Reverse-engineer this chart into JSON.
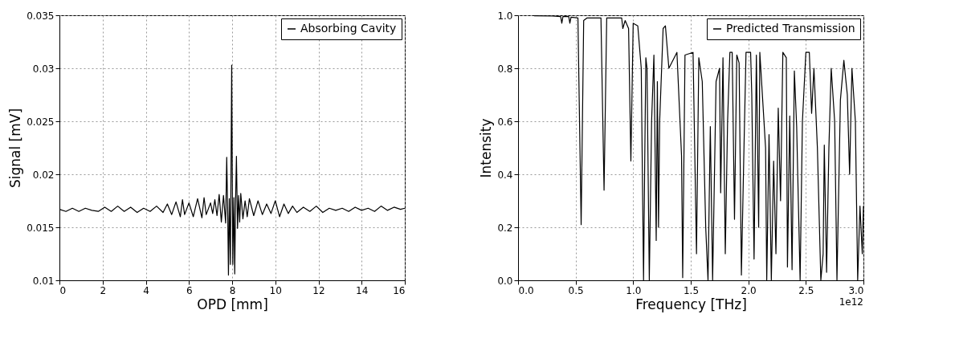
{
  "chart_data": [
    {
      "type": "line",
      "xlabel": "OPD [mm]",
      "ylabel": "Signal [mV]",
      "xlim": [
        0,
        16
      ],
      "ylim": [
        0.01,
        0.035
      ],
      "xticks": [
        0,
        2,
        4,
        6,
        8,
        10,
        12,
        14,
        16
      ],
      "yticks": [
        0.01,
        0.015,
        0.02,
        0.025,
        0.03,
        0.035
      ],
      "grid": true,
      "legend": "top right",
      "x": [
        0,
        0.3,
        0.6,
        0.9,
        1.2,
        1.5,
        1.8,
        2.1,
        2.4,
        2.7,
        3.0,
        3.3,
        3.6,
        3.9,
        4.2,
        4.5,
        4.8,
        5.0,
        5.2,
        5.4,
        5.6,
        5.7,
        5.8,
        6.0,
        6.2,
        6.4,
        6.6,
        6.7,
        6.8,
        7.0,
        7.1,
        7.2,
        7.3,
        7.4,
        7.5,
        7.6,
        7.7,
        7.75,
        7.8,
        7.83,
        7.87,
        7.92,
        7.98,
        8.03,
        8.08,
        8.12,
        8.16,
        8.2,
        8.25,
        8.3,
        8.35,
        8.4,
        8.5,
        8.6,
        8.7,
        8.8,
        9.0,
        9.2,
        9.4,
        9.6,
        9.8,
        10.0,
        10.2,
        10.4,
        10.6,
        10.8,
        11.0,
        11.3,
        11.6,
        11.9,
        12.2,
        12.5,
        12.8,
        13.1,
        13.4,
        13.7,
        14.0,
        14.3,
        14.6,
        14.9,
        15.2,
        15.5,
        15.8,
        16
      ],
      "series": [
        {
          "name": "Absorbing Cavity",
          "color": "#000000",
          "values": [
            0.0167,
            0.0165,
            0.0168,
            0.0165,
            0.0168,
            0.0166,
            0.0165,
            0.0169,
            0.0165,
            0.017,
            0.0165,
            0.0169,
            0.0164,
            0.0168,
            0.0165,
            0.017,
            0.0164,
            0.0172,
            0.0162,
            0.0174,
            0.016,
            0.0176,
            0.0162,
            0.0173,
            0.016,
            0.0177,
            0.0159,
            0.0178,
            0.0162,
            0.0173,
            0.0163,
            0.0176,
            0.0161,
            0.0181,
            0.0155,
            0.018,
            0.0154,
            0.0216,
            0.0158,
            0.0105,
            0.0177,
            0.0115,
            0.0303,
            0.0115,
            0.0178,
            0.0106,
            0.0175,
            0.0217,
            0.0149,
            0.018,
            0.0155,
            0.0182,
            0.0158,
            0.0175,
            0.016,
            0.0177,
            0.0161,
            0.0175,
            0.0162,
            0.0172,
            0.0163,
            0.0175,
            0.016,
            0.0172,
            0.0163,
            0.017,
            0.0164,
            0.0169,
            0.0165,
            0.017,
            0.0164,
            0.0168,
            0.0166,
            0.0168,
            0.0165,
            0.0169,
            0.0166,
            0.0168,
            0.0165,
            0.017,
            0.0166,
            0.0169,
            0.0167,
            0.0168
          ]
        }
      ]
    },
    {
      "type": "line",
      "xlabel": "Frequency [THz]",
      "ylabel": "Intensity",
      "xlim": [
        0,
        3
      ],
      "ylim": [
        0,
        1
      ],
      "xticks": [
        {
          "value": 0,
          "label": "0.0"
        },
        0.5,
        {
          "value": 1,
          "label": "1.0"
        },
        1.5,
        {
          "value": 2,
          "label": "2.0"
        },
        2.5,
        {
          "value": 3,
          "label": "3.0"
        }
      ],
      "yticks": [
        {
          "value": 0,
          "label": "0.0"
        },
        0.2,
        0.4,
        0.6,
        0.8,
        {
          "value": 1,
          "label": "1.0"
        }
      ],
      "grid": true,
      "legend": "top right",
      "annotations": [
        "1e12"
      ],
      "x": [
        0.14,
        0.3,
        0.37,
        0.38,
        0.39,
        0.44,
        0.45,
        0.46,
        0.52,
        0.548,
        0.57,
        0.6,
        0.72,
        0.747,
        0.77,
        0.9,
        0.91,
        0.93,
        0.96,
        0.98,
        1.0,
        1.04,
        1.07,
        1.09,
        1.1,
        1.11,
        1.12,
        1.14,
        1.16,
        1.18,
        1.2,
        1.21,
        1.22,
        1.23,
        1.26,
        1.28,
        1.31,
        1.38,
        1.42,
        1.43,
        1.45,
        1.52,
        1.55,
        1.57,
        1.6,
        1.63,
        1.65,
        1.67,
        1.69,
        1.72,
        1.75,
        1.76,
        1.78,
        1.8,
        1.82,
        1.84,
        1.86,
        1.88,
        1.9,
        1.92,
        1.94,
        1.96,
        1.98,
        2.02,
        2.03,
        2.05,
        2.07,
        2.09,
        2.1,
        2.15,
        2.16,
        2.18,
        2.2,
        2.22,
        2.24,
        2.26,
        2.28,
        2.3,
        2.33,
        2.34,
        2.36,
        2.38,
        2.4,
        2.42,
        2.45,
        2.47,
        2.5,
        2.53,
        2.55,
        2.57,
        2.6,
        2.63,
        2.65,
        2.66,
        2.68,
        2.7,
        2.72,
        2.75,
        2.77,
        2.8,
        2.83,
        2.86,
        2.88,
        2.9,
        2.93,
        2.95,
        2.97,
        2.99,
        3.0
      ],
      "series": [
        {
          "name": "Predicted Transmission",
          "color": "#000000",
          "values": [
            0.998,
            0.997,
            0.995,
            0.97,
            0.995,
            0.995,
            0.97,
            0.993,
            0.99,
            0.21,
            0.98,
            0.99,
            0.99,
            0.34,
            0.99,
            0.99,
            0.95,
            0.98,
            0.95,
            0.45,
            0.97,
            0.96,
            0.8,
            0.0,
            0.44,
            0.84,
            0.8,
            0.0,
            0.6,
            0.85,
            0.15,
            0.75,
            0.2,
            0.6,
            0.95,
            0.96,
            0.8,
            0.86,
            0.47,
            0.01,
            0.85,
            0.86,
            0.1,
            0.84,
            0.75,
            0.2,
            0.0,
            0.58,
            0.0,
            0.75,
            0.8,
            0.33,
            0.84,
            0.1,
            0.6,
            0.86,
            0.86,
            0.23,
            0.85,
            0.82,
            0.02,
            0.45,
            0.86,
            0.86,
            0.7,
            0.08,
            0.85,
            0.2,
            0.86,
            0.5,
            0.0,
            0.55,
            0.0,
            0.45,
            0.1,
            0.65,
            0.3,
            0.86,
            0.84,
            0.05,
            0.62,
            0.04,
            0.79,
            0.58,
            0.0,
            0.6,
            0.86,
            0.86,
            0.63,
            0.8,
            0.5,
            0.0,
            0.1,
            0.51,
            0.03,
            0.5,
            0.8,
            0.6,
            0.0,
            0.68,
            0.83,
            0.7,
            0.4,
            0.8,
            0.6,
            0.0,
            0.28,
            0.1,
            0.28
          ]
        }
      ]
    }
  ]
}
